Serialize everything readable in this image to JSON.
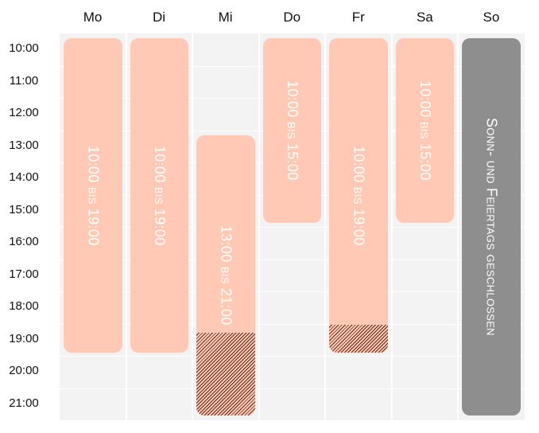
{
  "days": [
    {
      "name": "Mo",
      "entry": "10:00 bis 19:00"
    },
    {
      "name": "Di",
      "entry": "10:00 bis 19:00"
    },
    {
      "name": "Mi",
      "entry": "13:00 bis 21:00"
    },
    {
      "name": "Do",
      "entry": "10:00 bis 15:00"
    },
    {
      "name": "Fr",
      "entry": "10:00 bis 19:00"
    },
    {
      "name": "Sa",
      "entry": "10:00 bis 15:00"
    },
    {
      "name": "So",
      "entry": "Sonn- und Feiertags geschlossen"
    }
  ],
  "times": [
    "10:00",
    "11:00",
    "12:00",
    "13:00",
    "14:00",
    "15:00",
    "16:00",
    "17:00",
    "18:00",
    "19:00",
    "20:00",
    "21:00"
  ]
}
